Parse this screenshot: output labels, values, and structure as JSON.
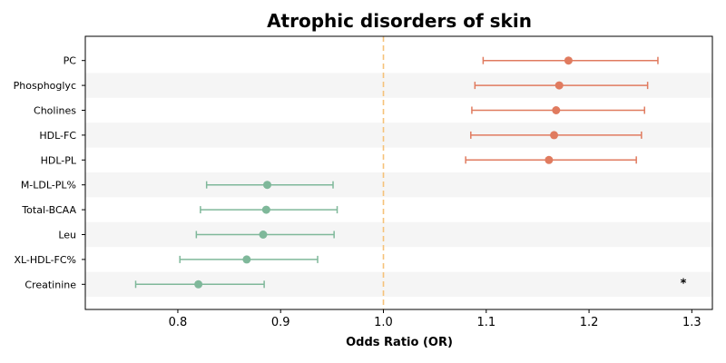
{
  "chart_data": {
    "type": "forest",
    "title": "Atrophic disorders of skin",
    "xlabel": "Odds Ratio (OR)",
    "xlim": [
      0.71,
      1.32
    ],
    "xticks": [
      "0.8",
      "0.9",
      "1.0",
      "1.1",
      "1.2",
      "1.3"
    ],
    "reference_line": 1.0,
    "reference_color": "#f5c27a",
    "colors": {
      "risk": "#e07b5f",
      "protective": "#7fb89a",
      "band": "#f5f5f5"
    },
    "rows": [
      {
        "label": "PC",
        "or": 1.18,
        "lower": 1.097,
        "upper": 1.267,
        "group": "risk",
        "annotation": ""
      },
      {
        "label": "Phosphoglyc",
        "or": 1.171,
        "lower": 1.089,
        "upper": 1.257,
        "group": "risk",
        "annotation": ""
      },
      {
        "label": "Cholines",
        "or": 1.168,
        "lower": 1.086,
        "upper": 1.254,
        "group": "risk",
        "annotation": ""
      },
      {
        "label": "HDL-FC",
        "or": 1.166,
        "lower": 1.085,
        "upper": 1.251,
        "group": "risk",
        "annotation": ""
      },
      {
        "label": "HDL-PL",
        "or": 1.161,
        "lower": 1.08,
        "upper": 1.246,
        "group": "risk",
        "annotation": ""
      },
      {
        "label": "M-LDL-PL%",
        "or": 0.887,
        "lower": 0.828,
        "upper": 0.951,
        "group": "protective",
        "annotation": ""
      },
      {
        "label": "Total-BCAA",
        "or": 0.886,
        "lower": 0.822,
        "upper": 0.955,
        "group": "protective",
        "annotation": ""
      },
      {
        "label": "Leu",
        "or": 0.883,
        "lower": 0.818,
        "upper": 0.952,
        "group": "protective",
        "annotation": ""
      },
      {
        "label": "XL-HDL-FC%",
        "or": 0.867,
        "lower": 0.802,
        "upper": 0.936,
        "group": "protective",
        "annotation": ""
      },
      {
        "label": "Creatinine",
        "or": 0.82,
        "lower": 0.759,
        "upper": 0.884,
        "group": "protective",
        "annotation": "*"
      }
    ]
  }
}
